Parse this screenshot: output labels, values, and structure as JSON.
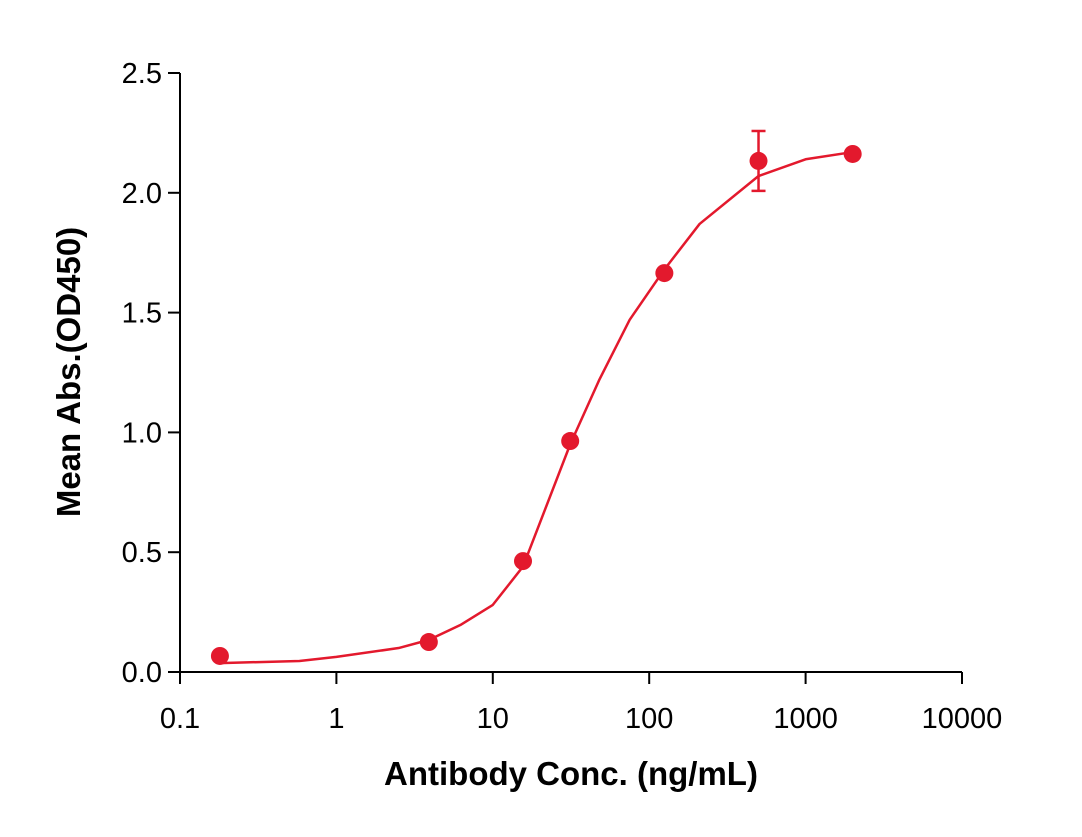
{
  "chart_data": {
    "type": "scatter",
    "xlabel": "Antibody Conc. (ng/mL)",
    "ylabel": "Mean Abs.(OD450)",
    "xscale": "log",
    "xlim": [
      0.1,
      10000
    ],
    "xticks": [
      0.1,
      1,
      10,
      100,
      1000,
      10000
    ],
    "ylim": [
      0,
      2.5
    ],
    "yticks": [
      {
        "value": 0,
        "label": "0.0"
      },
      0.5,
      {
        "value": 1,
        "label": "1.0"
      },
      1.5,
      {
        "value": 2,
        "label": "2.0"
      },
      2.5
    ],
    "series": [
      {
        "type": "scatter",
        "color": "#e3192d",
        "x": [
          0.18,
          3.9,
          15.6,
          31.25,
          125,
          500,
          2000
        ],
        "values": [
          0.067,
          0.125,
          0.463,
          0.964,
          1.665,
          2.133,
          2.162
        ],
        "errors": [
          null,
          null,
          null,
          null,
          null,
          0.125,
          null
        ]
      },
      {
        "type": "line",
        "color": "#e3192d",
        "x": [
          0.18,
          0.58,
          1,
          2.5,
          3.9,
          6.2,
          10,
          15.6,
          31.25,
          48,
          75,
          125,
          210,
          500,
          1000,
          2000
        ],
        "values": [
          0.037,
          0.046,
          0.063,
          0.1,
          0.134,
          0.196,
          0.28,
          0.44,
          0.95,
          1.22,
          1.47,
          1.68,
          1.87,
          2.07,
          2.14,
          2.17
        ]
      }
    ]
  }
}
